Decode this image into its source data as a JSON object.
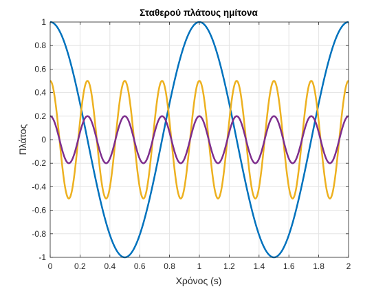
{
  "chart_data": {
    "type": "line",
    "title": "Σταθερού πλάτους ημίτονα",
    "xlabel": "Χρόνος (s)",
    "ylabel": "Πλάτος",
    "xlim": [
      0,
      2
    ],
    "ylim": [
      -1,
      1
    ],
    "x_ticks": [
      "0",
      "0.2",
      "0.4",
      "0.6",
      "0.8",
      "1",
      "1.2",
      "1.4",
      "1.6",
      "1.8",
      "2"
    ],
    "y_ticks": [
      "-1",
      "-0.8",
      "-0.6",
      "-0.4",
      "-0.2",
      "0",
      "0.2",
      "0.4",
      "0.6",
      "0.8",
      "1"
    ],
    "grid": true,
    "series": [
      {
        "amplitude": 1.0,
        "frequency_hz": 1,
        "function": "cos",
        "color": "#0072BD"
      },
      {
        "amplitude": 0.5,
        "frequency_hz": 4,
        "function": "cos",
        "color": "#EDB120"
      },
      {
        "amplitude": 0.2,
        "frequency_hz": 4,
        "function": "cos",
        "color": "#7E2F8E"
      }
    ],
    "line_width": 2.5
  }
}
